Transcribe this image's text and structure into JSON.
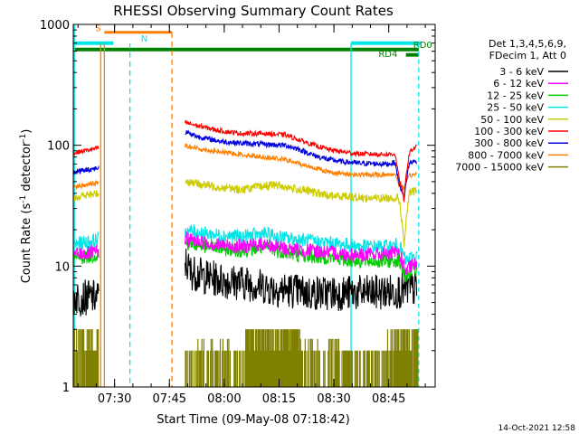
{
  "chart_data": {
    "type": "line",
    "title": "RHESSI Observing Summary Count Rates",
    "xlabel": "Start Time (09-May-08 07:18:42)",
    "ylabel_main": "Count Rate (s",
    "ylabel_sup1": "-1",
    "ylabel_mid": " detector",
    "ylabel_sup2": "-1",
    "ylabel_end": ")",
    "x_unit": "minutes after 07:18:42",
    "x_range": [
      0,
      99
    ],
    "y_scale": "log",
    "y_range": [
      1,
      1000
    ],
    "x_ticks": [
      {
        "label": "07:30",
        "x": 11.3
      },
      {
        "label": "07:45",
        "x": 26.3
      },
      {
        "label": "08:00",
        "x": 41.3
      },
      {
        "label": "08:15",
        "x": 56.3
      },
      {
        "label": "08:30",
        "x": 71.3
      },
      {
        "label": "08:45",
        "x": 86.3
      }
    ],
    "y_ticks": [
      {
        "label": "1",
        "y": 1
      },
      {
        "label": "10",
        "y": 10
      },
      {
        "label": "100",
        "y": 100
      },
      {
        "label": "1000",
        "y": 1000
      }
    ],
    "legend_header": [
      "Det 1,3,4,5,6,9,",
      "FDecim 1, Att 0"
    ],
    "legend_position": "right",
    "series": [
      {
        "name": "3 - 6 keV",
        "color": "#000000",
        "points": [
          [
            0,
            5.5
          ],
          [
            7,
            5.5
          ],
          [
            30.5,
            11
          ],
          [
            32,
            9
          ],
          [
            36,
            8.2
          ],
          [
            42,
            7.5
          ],
          [
            48,
            7.2
          ],
          [
            55,
            6.5
          ],
          [
            60,
            6.3
          ],
          [
            64,
            6
          ],
          [
            70,
            6
          ],
          [
            77,
            6
          ],
          [
            82,
            6
          ],
          [
            88,
            6.2
          ],
          [
            94,
            6.5
          ]
        ]
      },
      {
        "name": "6 - 12 keV",
        "color": "#ff00ff",
        "points": [
          [
            0,
            12.5
          ],
          [
            7,
            13
          ],
          [
            30.5,
            17
          ],
          [
            34,
            16
          ],
          [
            40,
            15
          ],
          [
            46,
            14.5
          ],
          [
            52,
            15.2
          ],
          [
            58,
            14
          ],
          [
            62,
            13.5
          ],
          [
            66,
            13.5
          ],
          [
            70,
            13
          ],
          [
            75,
            12.5
          ],
          [
            80,
            12.5
          ],
          [
            86,
            12.5
          ],
          [
            89,
            13
          ],
          [
            91,
            9
          ],
          [
            93,
            10.5
          ],
          [
            94,
            10
          ]
        ]
      },
      {
        "name": "12 - 25 keV",
        "color": "#00cc00",
        "points": [
          [
            0,
            11.5
          ],
          [
            7,
            12.5
          ],
          [
            30.5,
            15.5
          ],
          [
            34,
            15
          ],
          [
            40,
            14
          ],
          [
            46,
            13.5
          ],
          [
            52,
            14.2
          ],
          [
            58,
            13
          ],
          [
            62,
            12.2
          ],
          [
            66,
            12
          ],
          [
            70,
            11.8
          ],
          [
            75,
            11.2
          ],
          [
            80,
            11
          ],
          [
            86,
            11
          ],
          [
            89,
            11.2
          ],
          [
            91,
            8
          ],
          [
            93,
            9.5
          ],
          [
            94,
            9
          ]
        ]
      },
      {
        "name": "25 - 50 keV",
        "color": "#00e5e5",
        "points": [
          [
            0,
            15
          ],
          [
            7,
            16.5
          ],
          [
            30.5,
            20
          ],
          [
            34,
            19
          ],
          [
            40,
            18
          ],
          [
            46,
            17.5
          ],
          [
            52,
            18.5
          ],
          [
            58,
            17
          ],
          [
            62,
            16.5
          ],
          [
            66,
            16
          ],
          [
            70,
            15.5
          ],
          [
            75,
            15
          ],
          [
            80,
            14.5
          ],
          [
            86,
            14.5
          ],
          [
            89,
            15
          ],
          [
            91,
            11
          ],
          [
            93,
            12
          ],
          [
            94,
            12
          ]
        ]
      },
      {
        "name": "50 - 100 keV",
        "color": "#cccc00",
        "points": [
          [
            0,
            37
          ],
          [
            7,
            40
          ],
          [
            30.5,
            51
          ],
          [
            34,
            48
          ],
          [
            40,
            45
          ],
          [
            46,
            43
          ],
          [
            50,
            45
          ],
          [
            55,
            47
          ],
          [
            60,
            44
          ],
          [
            64,
            42
          ],
          [
            70,
            38
          ],
          [
            75,
            38
          ],
          [
            80,
            36.5
          ],
          [
            86,
            36.5
          ],
          [
            89,
            37
          ],
          [
            90.5,
            14
          ],
          [
            92,
            40
          ],
          [
            94,
            43
          ]
        ]
      },
      {
        "name": "100 - 300 keV",
        "color": "#ff0000",
        "points": [
          [
            0,
            86
          ],
          [
            7,
            95
          ],
          [
            30.5,
            155
          ],
          [
            34,
            145
          ],
          [
            40,
            132
          ],
          [
            46,
            125
          ],
          [
            52,
            125
          ],
          [
            58,
            122
          ],
          [
            62,
            110
          ],
          [
            66,
            100
          ],
          [
            70,
            92
          ],
          [
            74,
            88
          ],
          [
            78,
            85
          ],
          [
            86,
            84
          ],
          [
            88,
            85
          ],
          [
            89,
            55
          ],
          [
            90.5,
            35
          ],
          [
            92,
            88
          ],
          [
            94,
            98
          ]
        ]
      },
      {
        "name": "300 - 800 keV",
        "color": "#0000dd",
        "points": [
          [
            0,
            60
          ],
          [
            7,
            65
          ],
          [
            30.5,
            130
          ],
          [
            34,
            118
          ],
          [
            40,
            108
          ],
          [
            46,
            104
          ],
          [
            52,
            102
          ],
          [
            58,
            100
          ],
          [
            62,
            92
          ],
          [
            66,
            82
          ],
          [
            70,
            76
          ],
          [
            74,
            73
          ],
          [
            78,
            71
          ],
          [
            86,
            70
          ],
          [
            88,
            72
          ],
          [
            89,
            50
          ],
          [
            90.5,
            36
          ],
          [
            92,
            72
          ],
          [
            94,
            74
          ]
        ]
      },
      {
        "name": "800 - 7000 keV",
        "color": "#ff8000",
        "points": [
          [
            0,
            45
          ],
          [
            7,
            49
          ],
          [
            30.5,
            100
          ],
          [
            34,
            94
          ],
          [
            40,
            88
          ],
          [
            46,
            84
          ],
          [
            52,
            80
          ],
          [
            58,
            76
          ],
          [
            62,
            70
          ],
          [
            66,
            65
          ],
          [
            70,
            60
          ],
          [
            74,
            58
          ],
          [
            78,
            57
          ],
          [
            86,
            57
          ],
          [
            88,
            58
          ],
          [
            89,
            48
          ],
          [
            90.5,
            44
          ],
          [
            92,
            56
          ],
          [
            94,
            58
          ]
        ]
      },
      {
        "name": "7000 - 15000 keV",
        "color": "#808000",
        "points": []
      }
    ],
    "annotations": [
      {
        "text": "S",
        "color": "#ff8000"
      },
      {
        "text": "N",
        "color": "#00e5e5"
      },
      {
        "text": "RD4",
        "color": "#008000"
      },
      {
        "text": "RD0",
        "color": "#008000"
      }
    ],
    "date_stamp": "14-Oct-2021 12:58",
    "grid": false
  }
}
